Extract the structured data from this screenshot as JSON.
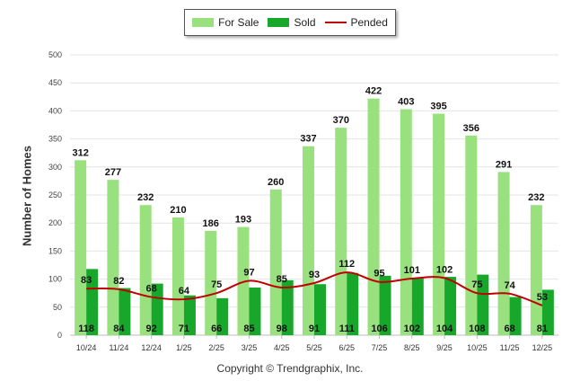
{
  "chart_data": {
    "type": "bar",
    "ylabel": "Number of Homes",
    "xlabel": "",
    "ylim": [
      0,
      500
    ],
    "yticks": [
      0,
      50,
      100,
      150,
      200,
      250,
      300,
      350,
      400,
      450,
      500
    ],
    "categories": [
      "10/24",
      "11/24",
      "12/24",
      "1/25",
      "2/25",
      "3/25",
      "4/25",
      "5/25",
      "6/25",
      "7/25",
      "8/25",
      "9/25",
      "10/25",
      "11/25",
      "12/25"
    ],
    "series": [
      {
        "name": "For Sale",
        "type": "bar",
        "color": "#99e07f",
        "values": [
          312,
          277,
          232,
          210,
          186,
          193,
          260,
          337,
          370,
          422,
          403,
          395,
          356,
          291,
          232
        ]
      },
      {
        "name": "Sold",
        "type": "bar",
        "color": "#17a82b",
        "values": [
          118,
          84,
          92,
          71,
          66,
          85,
          98,
          91,
          111,
          106,
          102,
          104,
          108,
          68,
          81
        ]
      },
      {
        "name": "Pended",
        "type": "line",
        "color": "#c00000",
        "values": [
          83,
          82,
          68,
          64,
          75,
          97,
          85,
          93,
          112,
          95,
          101,
          102,
          75,
          74,
          53
        ]
      }
    ],
    "legend_position": "top-center",
    "grid": true
  },
  "footer": {
    "copyright": "Copyright © Trendgraphix, Inc."
  }
}
